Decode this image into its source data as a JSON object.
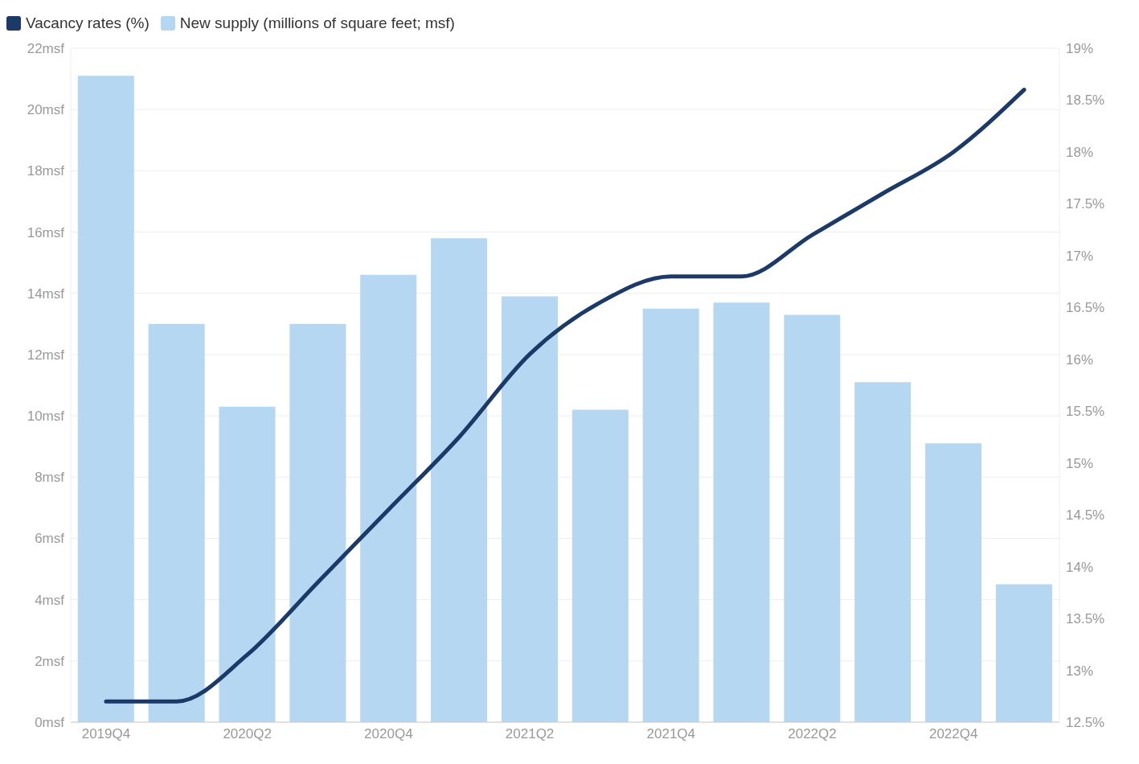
{
  "chart_data": {
    "type": "bar",
    "legend": "top left",
    "grid": "y",
    "categories": [
      "2019Q4",
      null,
      "2020Q2",
      null,
      "2020Q4",
      null,
      "2021Q2",
      null,
      "2021Q4",
      null,
      "2022Q2",
      null,
      "2022Q4",
      null
    ],
    "series": [
      {
        "name": "Vacancy rates (%)",
        "type": "line",
        "axis": "y2",
        "color": "#1b3a68",
        "values": [
          12.7,
          12.7,
          13.15,
          13.85,
          14.55,
          15.25,
          16.05,
          16.55,
          16.8,
          16.8,
          17.2,
          17.6,
          18.0,
          18.6
        ]
      },
      {
        "name": "New supply (millions of square feet; msf)",
        "color": "#b5d7f1",
        "values": [
          21.1,
          13.0,
          10.3,
          13.0,
          14.6,
          15.8,
          13.9,
          10.2,
          13.5,
          13.7,
          13.3,
          11.1,
          9.1,
          4.5
        ]
      }
    ],
    "ylim": [
      0,
      22
    ],
    "yticks": [
      {
        "value": 0,
        "label": "0msf"
      },
      {
        "value": 2,
        "label": "2msf"
      },
      {
        "value": 4,
        "label": "4msf"
      },
      {
        "value": 6,
        "label": "6msf"
      },
      {
        "value": 8,
        "label": "8msf"
      },
      {
        "value": 10,
        "label": "10msf"
      },
      {
        "value": 12,
        "label": "12msf"
      },
      {
        "value": 14,
        "label": "14msf"
      },
      {
        "value": 16,
        "label": "16msf"
      },
      {
        "value": 18,
        "label": "18msf"
      },
      {
        "value": 20,
        "label": "20msf"
      },
      {
        "value": 22,
        "label": "22msf"
      }
    ],
    "y2lim": [
      12.5,
      19
    ],
    "y2ticks": [
      {
        "value": 12.5,
        "label": "12.5%"
      },
      {
        "value": 13,
        "label": "13%"
      },
      {
        "value": 13.5,
        "label": "13.5%"
      },
      {
        "value": 14,
        "label": "14%"
      },
      {
        "value": 14.5,
        "label": "14.5%"
      },
      {
        "value": 15,
        "label": "15%"
      },
      {
        "value": 15.5,
        "label": "15.5%"
      },
      {
        "value": 16,
        "label": "16%"
      },
      {
        "value": 16.5,
        "label": "16.5%"
      },
      {
        "value": 17,
        "label": "17%"
      },
      {
        "value": 17.5,
        "label": "17.5%"
      },
      {
        "value": 18,
        "label": "18%"
      },
      {
        "value": 18.5,
        "label": "18.5%"
      },
      {
        "value": 19,
        "label": "19%"
      }
    ]
  }
}
